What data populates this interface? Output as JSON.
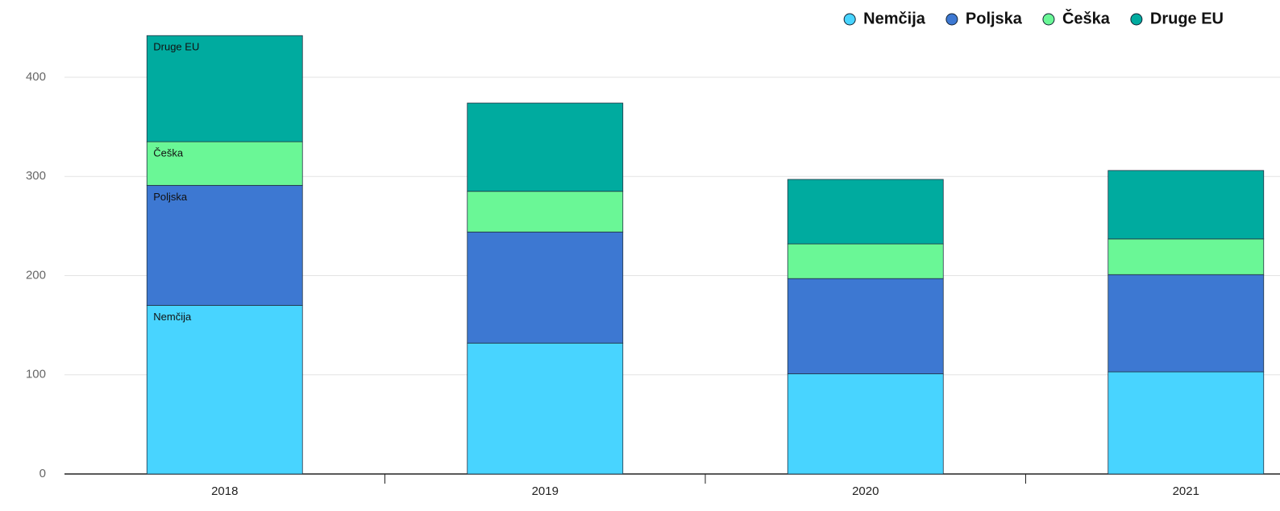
{
  "chart_data": {
    "type": "stacked-bar",
    "categories": [
      "2018",
      "2019",
      "2020",
      "2021"
    ],
    "series": [
      {
        "name": "Nemčija",
        "color": "#48d4ff",
        "values": [
          170,
          132,
          101,
          103
        ]
      },
      {
        "name": "Poljska",
        "color": "#3d78d2",
        "values": [
          121,
          112,
          96,
          98
        ]
      },
      {
        "name": "Češka",
        "color": "#6af796",
        "values": [
          44,
          41,
          35,
          36
        ]
      },
      {
        "name": "Druge EU",
        "color": "#00ab9f",
        "values": [
          107,
          89,
          65,
          69
        ]
      }
    ],
    "ylim": [
      0,
      400
    ],
    "yticks": [
      0,
      100,
      200,
      300,
      400
    ],
    "grid": true,
    "legend": "top-right"
  }
}
